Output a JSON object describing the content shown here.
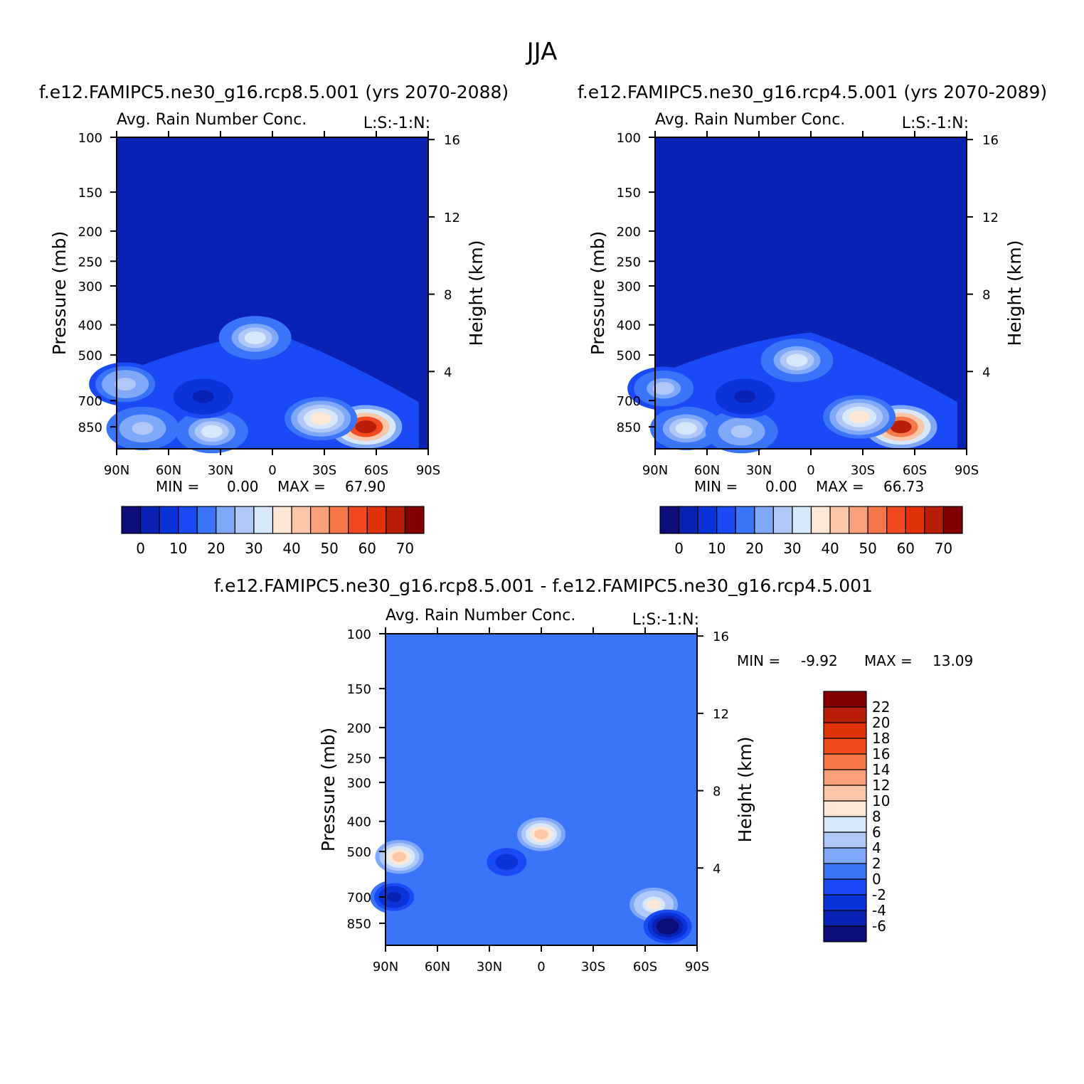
{
  "figure": {
    "title": "JJA"
  },
  "palettes": {
    "abs": [
      "#0c0c7a",
      "#0a22b4",
      "#0a33d9",
      "#1a4af5",
      "#3a74f8",
      "#80a8f8",
      "#b0c8f7",
      "#d8e8fb",
      "#fde8d8",
      "#fcc6a9",
      "#f9a07a",
      "#f6784a",
      "#f24a20",
      "#e2320a",
      "#b81e08",
      "#840000"
    ],
    "diff": [
      "#0c0c7a",
      "#0a22b4",
      "#0a33d9",
      "#1a4af5",
      "#3a74f8",
      "#80a8f8",
      "#b0c8f7",
      "#d8e8fb",
      "#fde8d8",
      "#fcc6a9",
      "#f9a07a",
      "#f6784a",
      "#f24a20",
      "#e2320a",
      "#b81e08",
      "#840000"
    ]
  },
  "chart_data": [
    {
      "type": "heatmap",
      "case": "f.e12.FAMIPC5.ne30_g16.rcp8.5.001 (yrs 2070-2088)",
      "title": "Avg. Rain Number Conc.",
      "corner_label": "L:S:-1:N:",
      "ylabel": "Pressure (mb)",
      "ylabel_right": "Height (km)",
      "x_ticks": [
        "90N",
        "60N",
        "30N",
        "0",
        "30S",
        "60S",
        "90S"
      ],
      "x_range": [
        90,
        -90
      ],
      "y_ticks": [
        100,
        150,
        200,
        250,
        300,
        400,
        500,
        700,
        850
      ],
      "y_scale": "log",
      "y_range": [
        100,
        1000
      ],
      "height_ticks": [
        16,
        12,
        8,
        4
      ],
      "min_label": "MIN =",
      "min_value": "0.00",
      "max_label": "MAX =",
      "max_value": "67.90",
      "colorbar_orientation": "horizontal",
      "colorbar_labels": [
        "0",
        "10",
        "20",
        "30",
        "40",
        "50",
        "60",
        "70"
      ],
      "features": [
        {
          "lat": -54,
          "p": 850,
          "value": 66
        },
        {
          "lat": -28,
          "p": 800,
          "value": 36
        },
        {
          "lat": 10,
          "p": 440,
          "value": 31
        },
        {
          "lat": 75,
          "p": 860,
          "value": 28
        },
        {
          "lat": 35,
          "p": 880,
          "value": 30
        },
        {
          "lat": 40,
          "p": 680,
          "value": 4
        },
        {
          "lat": 85,
          "p": 620,
          "value": 26
        }
      ]
    },
    {
      "type": "heatmap",
      "case": "f.e12.FAMIPC5.ne30_g16.rcp4.5.001 (yrs 2070-2089)",
      "title": "Avg. Rain Number Conc.",
      "corner_label": "L:S:-1:N:",
      "ylabel": "Pressure (mb)",
      "ylabel_right": "Height (km)",
      "x_ticks": [
        "90N",
        "60N",
        "30N",
        "0",
        "30S",
        "60S",
        "90S"
      ],
      "x_range": [
        90,
        -90
      ],
      "y_ticks": [
        100,
        150,
        200,
        250,
        300,
        400,
        500,
        700,
        850
      ],
      "y_scale": "log",
      "y_range": [
        100,
        1000
      ],
      "height_ticks": [
        16,
        12,
        8,
        4
      ],
      "min_label": "MIN =",
      "min_value": "0.00",
      "max_label": "MAX =",
      "max_value": "66.73",
      "colorbar_orientation": "horizontal",
      "colorbar_labels": [
        "0",
        "10",
        "20",
        "30",
        "40",
        "50",
        "60",
        "70"
      ],
      "features": [
        {
          "lat": -52,
          "p": 850,
          "value": 65
        },
        {
          "lat": -28,
          "p": 790,
          "value": 35
        },
        {
          "lat": 8,
          "p": 520,
          "value": 30
        },
        {
          "lat": 72,
          "p": 860,
          "value": 30
        },
        {
          "lat": 40,
          "p": 880,
          "value": 28
        },
        {
          "lat": 38,
          "p": 680,
          "value": 4
        },
        {
          "lat": 85,
          "p": 640,
          "value": 25
        }
      ]
    },
    {
      "type": "heatmap",
      "case": "f.e12.FAMIPC5.ne30_g16.rcp8.5.001 - f.e12.FAMIPC5.ne30_g16.rcp4.5.001",
      "title": "Avg. Rain Number Conc.",
      "corner_label": "L:S:-1:N:",
      "ylabel": "Pressure (mb)",
      "ylabel_right": "Height (km)",
      "x_ticks": [
        "90N",
        "60N",
        "30N",
        "0",
        "30S",
        "60S",
        "90S"
      ],
      "x_range": [
        90,
        -90
      ],
      "y_ticks": [
        100,
        150,
        200,
        250,
        300,
        400,
        500,
        700,
        850
      ],
      "y_scale": "log",
      "y_range": [
        100,
        1000
      ],
      "height_ticks": [
        16,
        12,
        8,
        4
      ],
      "min_label": "MIN =",
      "min_value": "-9.92",
      "max_label": "MAX =",
      "max_value": "13.09",
      "colorbar_orientation": "vertical",
      "colorbar_labels": [
        "22",
        "20",
        "18",
        "16",
        "14",
        "12",
        "10",
        "8",
        "6",
        "4",
        "2",
        "0",
        "-2",
        "-4",
        "-6"
      ],
      "features": [
        {
          "lat": 0,
          "p": 440,
          "value": 11
        },
        {
          "lat": 82,
          "p": 520,
          "value": 10
        },
        {
          "lat": -65,
          "p": 740,
          "value": 8
        },
        {
          "lat": 20,
          "p": 540,
          "value": -4
        },
        {
          "lat": 85,
          "p": 700,
          "value": -5
        },
        {
          "lat": -73,
          "p": 870,
          "value": -8
        }
      ]
    }
  ]
}
